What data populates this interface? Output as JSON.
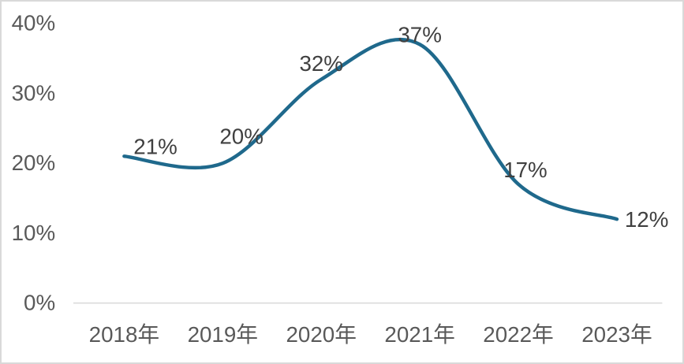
{
  "chart_data": {
    "type": "line",
    "title": "",
    "xlabel": "",
    "ylabel": "",
    "categories": [
      "2018年",
      "2019年",
      "2020年",
      "2021年",
      "2022年",
      "2023年"
    ],
    "values": [
      21,
      20,
      32,
      37,
      17,
      12
    ],
    "data_labels": [
      "21%",
      "20%",
      "32%",
      "37%",
      "17%",
      "12%"
    ],
    "y_ticks": [
      {
        "label": "40%",
        "value": 40
      },
      {
        "label": "30%",
        "value": 30
      },
      {
        "label": "20%",
        "value": 20
      },
      {
        "label": "10%",
        "value": 10
      },
      {
        "label": "0%",
        "value": 0
      }
    ],
    "ylim": [
      0,
      40
    ],
    "grid": "off",
    "legend": "none",
    "line_smooth": true,
    "colors": {
      "line": "#1F698C",
      "data_label": "#404040",
      "axis_text": "#595959",
      "axis_line": "#D9D9D9",
      "background": "#FFFFFF",
      "frame_border": "#D9D9D9"
    }
  }
}
